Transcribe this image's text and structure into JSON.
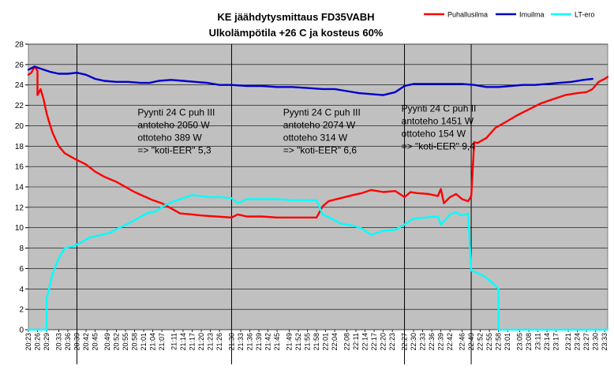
{
  "chart_data": {
    "type": "line",
    "title": [
      "KE jäähdytysmittaus FD35VABH",
      "Ulkolämpötila +26 C ja kosteus 60%"
    ],
    "ylim": [
      0,
      28
    ],
    "yticks": [
      0,
      2,
      4,
      6,
      8,
      10,
      12,
      14,
      16,
      18,
      20,
      22,
      24,
      26,
      28
    ],
    "grid": true,
    "legend_position": "top-right",
    "x_labels": [
      "20:23",
      "20:26",
      "20:29",
      "20:33",
      "20:36",
      "20:39",
      "20:42",
      "20:45",
      "20:49",
      "20:52",
      "20:55",
      "20:58",
      "21:01",
      "21:04",
      "21:07",
      "21:11",
      "21:14",
      "21:17",
      "21:20",
      "21:23",
      "21:26",
      "21:30",
      "21:33",
      "21:36",
      "21:39",
      "21:42",
      "21:45",
      "21:49",
      "21:52",
      "21:55",
      "21:58",
      "22:01",
      "22:04",
      "22:08",
      "22:11",
      "22:14",
      "22:17",
      "22:20",
      "22:23",
      "22:27",
      "22:30",
      "22:33",
      "22:36",
      "22:39",
      "22:42",
      "22:46",
      "22:49",
      "22:52",
      "22:55",
      "22:58",
      "23:01",
      "23:05",
      "23:08",
      "23:11",
      "23:14",
      "23:17",
      "23:21",
      "23:24",
      "23:27",
      "23:30",
      "23:33"
    ],
    "divider_times": [
      "20:39",
      "21:30",
      "22:27",
      "22:49"
    ],
    "series": [
      {
        "name": "Puhallusilma",
        "color": "#ff0000",
        "points": [
          [
            "20:23",
            25.0
          ],
          [
            "20:24",
            25.2
          ],
          [
            "20:25",
            25.8
          ],
          [
            "20:26",
            25.4
          ],
          [
            "20:26",
            23.0
          ],
          [
            "20:27",
            23.6
          ],
          [
            "20:28",
            22.6
          ],
          [
            "20:29",
            21.2
          ],
          [
            "20:30",
            20.2
          ],
          [
            "20:31",
            19.3
          ],
          [
            "20:33",
            18.0
          ],
          [
            "20:35",
            17.3
          ],
          [
            "20:38",
            16.8
          ],
          [
            "20:40",
            16.5
          ],
          [
            "20:42",
            16.2
          ],
          [
            "20:45",
            15.5
          ],
          [
            "20:48",
            15.0
          ],
          [
            "20:52",
            14.5
          ],
          [
            "20:55",
            14.0
          ],
          [
            "20:58",
            13.5
          ],
          [
            "21:01",
            13.1
          ],
          [
            "21:04",
            12.7
          ],
          [
            "21:07",
            12.4
          ],
          [
            "21:10",
            11.9
          ],
          [
            "21:13",
            11.4
          ],
          [
            "21:17",
            11.3
          ],
          [
            "21:20",
            11.2
          ],
          [
            "21:25",
            11.1
          ],
          [
            "21:30",
            11.0
          ],
          [
            "21:32",
            11.3
          ],
          [
            "21:35",
            11.1
          ],
          [
            "21:40",
            11.1
          ],
          [
            "21:45",
            11.0
          ],
          [
            "21:50",
            11.0
          ],
          [
            "21:55",
            11.0
          ],
          [
            "21:58",
            11.0
          ],
          [
            "22:00",
            12.1
          ],
          [
            "22:02",
            12.6
          ],
          [
            "22:06",
            12.9
          ],
          [
            "22:10",
            13.2
          ],
          [
            "22:13",
            13.4
          ],
          [
            "22:16",
            13.7
          ],
          [
            "22:20",
            13.5
          ],
          [
            "22:24",
            13.6
          ],
          [
            "22:27",
            13.0
          ],
          [
            "22:29",
            13.5
          ],
          [
            "22:31",
            13.4
          ],
          [
            "22:35",
            13.3
          ],
          [
            "22:38",
            13.1
          ],
          [
            "22:39",
            13.8
          ],
          [
            "22:40",
            12.4
          ],
          [
            "22:42",
            13.0
          ],
          [
            "22:44",
            13.3
          ],
          [
            "22:46",
            12.8
          ],
          [
            "22:48",
            12.6
          ],
          [
            "22:49",
            13.1
          ],
          [
            "22:50",
            18.4
          ],
          [
            "22:51",
            18.3
          ],
          [
            "22:54",
            18.8
          ],
          [
            "22:57",
            19.8
          ],
          [
            "23:00",
            20.3
          ],
          [
            "23:04",
            21.0
          ],
          [
            "23:08",
            21.6
          ],
          [
            "23:12",
            22.2
          ],
          [
            "23:16",
            22.6
          ],
          [
            "23:20",
            23.0
          ],
          [
            "23:24",
            23.2
          ],
          [
            "23:27",
            23.3
          ],
          [
            "23:29",
            23.6
          ],
          [
            "23:31",
            24.3
          ],
          [
            "23:33",
            24.6
          ],
          [
            "23:34",
            24.8
          ]
        ]
      },
      {
        "name": "Imuilma",
        "color": "#0000cc",
        "points": [
          [
            "20:23",
            25.5
          ],
          [
            "20:25",
            25.8
          ],
          [
            "20:27",
            25.6
          ],
          [
            "20:30",
            25.3
          ],
          [
            "20:33",
            25.1
          ],
          [
            "20:36",
            25.1
          ],
          [
            "20:39",
            25.2
          ],
          [
            "20:42",
            25.0
          ],
          [
            "20:45",
            24.6
          ],
          [
            "20:48",
            24.4
          ],
          [
            "20:52",
            24.3
          ],
          [
            "20:56",
            24.3
          ],
          [
            "21:00",
            24.2
          ],
          [
            "21:03",
            24.2
          ],
          [
            "21:06",
            24.4
          ],
          [
            "21:10",
            24.5
          ],
          [
            "21:14",
            24.4
          ],
          [
            "21:18",
            24.3
          ],
          [
            "21:22",
            24.2
          ],
          [
            "21:26",
            24.0
          ],
          [
            "21:30",
            24.0
          ],
          [
            "21:35",
            23.9
          ],
          [
            "21:40",
            23.9
          ],
          [
            "21:45",
            23.8
          ],
          [
            "21:50",
            23.8
          ],
          [
            "21:55",
            23.7
          ],
          [
            "22:00",
            23.6
          ],
          [
            "22:04",
            23.6
          ],
          [
            "22:08",
            23.4
          ],
          [
            "22:12",
            23.2
          ],
          [
            "22:16",
            23.1
          ],
          [
            "22:20",
            23.0
          ],
          [
            "22:24",
            23.3
          ],
          [
            "22:27",
            23.9
          ],
          [
            "22:30",
            24.1
          ],
          [
            "22:34",
            24.1
          ],
          [
            "22:38",
            24.1
          ],
          [
            "22:42",
            24.1
          ],
          [
            "22:46",
            24.1
          ],
          [
            "22:50",
            24.0
          ],
          [
            "22:54",
            23.8
          ],
          [
            "22:58",
            23.8
          ],
          [
            "23:02",
            23.9
          ],
          [
            "23:06",
            24.0
          ],
          [
            "23:10",
            24.0
          ],
          [
            "23:14",
            24.1
          ],
          [
            "23:18",
            24.2
          ],
          [
            "23:22",
            24.3
          ],
          [
            "23:26",
            24.5
          ],
          [
            "23:29",
            24.6
          ]
        ]
      },
      {
        "name": "LT-ero",
        "color": "#00ffff",
        "points": [
          [
            "20:23",
            0
          ],
          [
            "20:29",
            0
          ],
          [
            "20:29",
            3.0
          ],
          [
            "20:31",
            5.5
          ],
          [
            "20:33",
            7.0
          ],
          [
            "20:35",
            8.0
          ],
          [
            "20:38",
            8.2
          ],
          [
            "20:40",
            8.5
          ],
          [
            "20:43",
            9.0
          ],
          [
            "20:47",
            9.3
          ],
          [
            "20:50",
            9.5
          ],
          [
            "20:53",
            10.0
          ],
          [
            "20:56",
            10.4
          ],
          [
            "20:59",
            10.9
          ],
          [
            "21:02",
            11.4
          ],
          [
            "21:05",
            11.6
          ],
          [
            "21:08",
            12.2
          ],
          [
            "21:11",
            12.6
          ],
          [
            "21:14",
            12.9
          ],
          [
            "21:17",
            13.2
          ],
          [
            "21:20",
            13.1
          ],
          [
            "21:23",
            13.0
          ],
          [
            "21:26",
            13.0
          ],
          [
            "21:30",
            12.9
          ],
          [
            "21:32",
            12.4
          ],
          [
            "21:35",
            12.8
          ],
          [
            "21:40",
            12.8
          ],
          [
            "21:45",
            12.8
          ],
          [
            "21:50",
            12.7
          ],
          [
            "21:55",
            12.7
          ],
          [
            "21:58",
            12.7
          ],
          [
            "22:00",
            11.3
          ],
          [
            "22:03",
            10.9
          ],
          [
            "22:06",
            10.4
          ],
          [
            "22:10",
            10.2
          ],
          [
            "22:13",
            9.9
          ],
          [
            "22:16",
            9.3
          ],
          [
            "22:20",
            9.7
          ],
          [
            "22:24",
            9.8
          ],
          [
            "22:27",
            10.3
          ],
          [
            "22:30",
            10.9
          ],
          [
            "22:34",
            11.0
          ],
          [
            "22:38",
            11.1
          ],
          [
            "22:39",
            10.3
          ],
          [
            "22:42",
            11.3
          ],
          [
            "22:44",
            11.5
          ],
          [
            "22:46",
            11.2
          ],
          [
            "22:48",
            11.4
          ],
          [
            "22:49",
            5.8
          ],
          [
            "22:50",
            5.7
          ],
          [
            "22:53",
            5.3
          ],
          [
            "22:56",
            4.6
          ],
          [
            "22:58",
            4.0
          ],
          [
            "22:58",
            0
          ],
          [
            "23:05",
            0
          ],
          [
            "23:15",
            0
          ],
          [
            "23:25",
            0
          ],
          [
            "23:34",
            0
          ]
        ]
      }
    ],
    "annotations": [
      {
        "lines": [
          "Pyynti 24 C puh III",
          "antoteho 2050 W",
          "ottoteho 389 W",
          "=> \"koti-EER\" 5,3"
        ],
        "anchor_time": "20:59",
        "anchor_y": 21.0
      },
      {
        "lines": [
          "Pyynti 24 C puh III",
          "antoteho 2074 W",
          "ottoteho 314 W",
          "=> \"koti-EER\" 6,6"
        ],
        "anchor_time": "21:47",
        "anchor_y": 21.0
      },
      {
        "lines": [
          "Pyynti 24 C puh II",
          "antoteho 1451 W",
          "ottoteho 154 W",
          "=> \"koti-EER\" 9,4"
        ],
        "anchor_time": "22:26",
        "anchor_y": 21.4
      }
    ]
  }
}
